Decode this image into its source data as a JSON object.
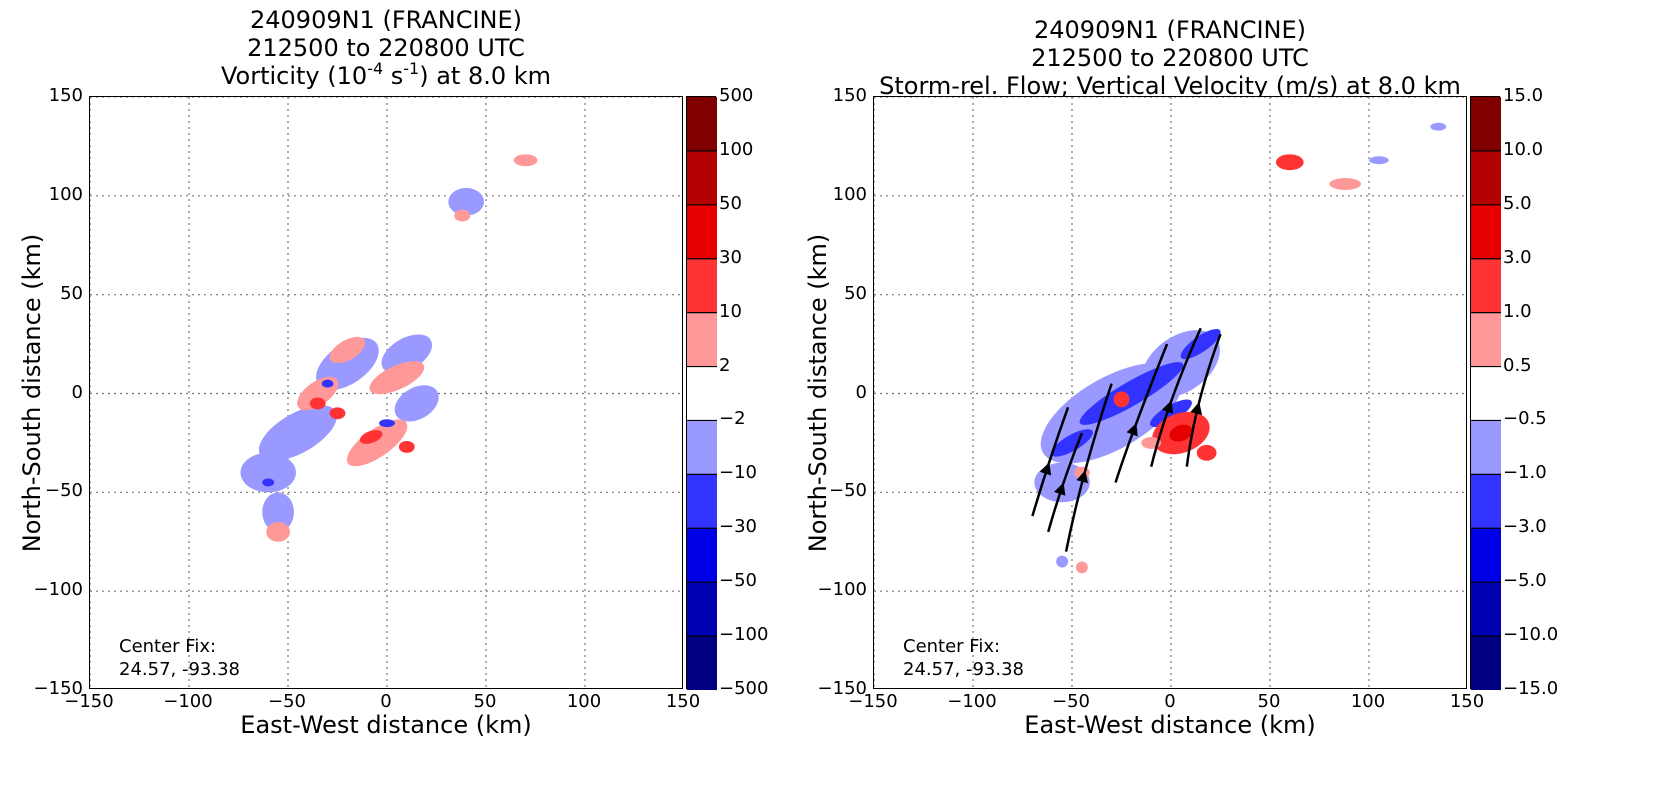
{
  "chart_data": [
    {
      "type": "heatmap",
      "title_lines": [
        "240909N1 (FRANCINE)",
        "212500 to 220800 UTC"
      ],
      "title_line3": {
        "pre": "Vorticity (10",
        "sup1": "-4",
        "mid": " s",
        "sup2": "-1",
        "post": ") at 8.0 km"
      },
      "xlabel": "East-West distance (km)",
      "ylabel": "North-South distance (km)",
      "xlim": [
        -150,
        150
      ],
      "ylim": [
        -150,
        150
      ],
      "xticks": [
        "−150",
        "−100",
        "−50",
        "0",
        "50",
        "100",
        "150"
      ],
      "yticks": [
        "−150",
        "−100",
        "−50",
        "0",
        "50",
        "100",
        "150"
      ],
      "grid": true,
      "center_fix": {
        "label": "Center Fix:",
        "value": "24.57, -93.38"
      },
      "colorbar": {
        "levels": [
          "−500",
          "−100",
          "−50",
          "−30",
          "−10",
          "−2",
          "2",
          "10",
          "30",
          "50",
          "100",
          "500"
        ],
        "colors": [
          "#000080",
          "#0000b3",
          "#0000e6",
          "#3333ff",
          "#9999ff",
          "#ffffff",
          "#ff9999",
          "#ff3333",
          "#e60000",
          "#b30000",
          "#800000"
        ]
      },
      "features": [
        {
          "x": -45,
          "y": -20,
          "rx": 22,
          "ry": 10,
          "rot": -30,
          "color": "#9999ff"
        },
        {
          "x": -60,
          "y": -40,
          "rx": 14,
          "ry": 10,
          "rot": 0,
          "color": "#9999ff"
        },
        {
          "x": -55,
          "y": -60,
          "rx": 8,
          "ry": 10,
          "rot": 0,
          "color": "#9999ff"
        },
        {
          "x": -20,
          "y": 15,
          "rx": 18,
          "ry": 10,
          "rot": -35,
          "color": "#9999ff"
        },
        {
          "x": 10,
          "y": 20,
          "rx": 14,
          "ry": 8,
          "rot": -30,
          "color": "#9999ff"
        },
        {
          "x": 15,
          "y": -5,
          "rx": 12,
          "ry": 8,
          "rot": -30,
          "color": "#9999ff"
        },
        {
          "x": 40,
          "y": 97,
          "rx": 9,
          "ry": 7,
          "rot": 0,
          "color": "#9999ff"
        },
        {
          "x": -35,
          "y": 0,
          "rx": 12,
          "ry": 6,
          "rot": -35,
          "color": "#ff9999"
        },
        {
          "x": -5,
          "y": -25,
          "rx": 18,
          "ry": 7,
          "rot": -35,
          "color": "#ff9999"
        },
        {
          "x": 5,
          "y": 8,
          "rx": 15,
          "ry": 6,
          "rot": -25,
          "color": "#ff9999"
        },
        {
          "x": -20,
          "y": 22,
          "rx": 10,
          "ry": 5,
          "rot": -30,
          "color": "#ff9999"
        },
        {
          "x": -55,
          "y": -70,
          "rx": 6,
          "ry": 5,
          "rot": 0,
          "color": "#ff9999"
        },
        {
          "x": 70,
          "y": 118,
          "rx": 6,
          "ry": 3,
          "rot": 0,
          "color": "#ff9999"
        },
        {
          "x": 38,
          "y": 90,
          "rx": 4,
          "ry": 3,
          "rot": 0,
          "color": "#ff9999"
        },
        {
          "x": -35,
          "y": -5,
          "rx": 4,
          "ry": 3,
          "rot": 0,
          "color": "#ff3333"
        },
        {
          "x": -8,
          "y": -22,
          "rx": 6,
          "ry": 3,
          "rot": -20,
          "color": "#ff3333"
        },
        {
          "x": 10,
          "y": -27,
          "rx": 4,
          "ry": 3,
          "rot": 0,
          "color": "#ff3333"
        },
        {
          "x": -25,
          "y": -10,
          "rx": 4,
          "ry": 3,
          "rot": 0,
          "color": "#ff3333"
        },
        {
          "x": -30,
          "y": 5,
          "rx": 3,
          "ry": 2,
          "rot": 0,
          "color": "#3333ff"
        },
        {
          "x": 0,
          "y": -15,
          "rx": 4,
          "ry": 2,
          "rot": 0,
          "color": "#3333ff"
        },
        {
          "x": -60,
          "y": -45,
          "rx": 3,
          "ry": 2,
          "rot": 0,
          "color": "#3333ff"
        }
      ],
      "streamlines": []
    },
    {
      "type": "heatmap",
      "title_lines": [
        "240909N1 (FRANCINE)",
        "212500 to 220800 UTC"
      ],
      "title_line3": {
        "pre": "Storm-rel. Flow; Vertical Velocity (m/s) at 8.0 km",
        "sup1": "",
        "mid": "",
        "sup2": "",
        "post": ""
      },
      "xlabel": "East-West distance (km)",
      "ylabel": "North-South distance (km)",
      "xlim": [
        -150,
        150
      ],
      "ylim": [
        -150,
        150
      ],
      "xticks": [
        "−150",
        "−100",
        "−50",
        "0",
        "50",
        "100",
        "150"
      ],
      "yticks": [
        "−150",
        "−100",
        "−50",
        "0",
        "50",
        "100",
        "150"
      ],
      "grid": true,
      "center_fix": {
        "label": "Center Fix:",
        "value": "24.57, -93.38"
      },
      "colorbar": {
        "levels": [
          "−15.0",
          "−10.0",
          "−5.0",
          "−3.0",
          "−1.0",
          "−0.5",
          "0.5",
          "1.0",
          "3.0",
          "5.0",
          "10.0",
          "15.0"
        ],
        "colors": [
          "#000080",
          "#0000b3",
          "#0000e6",
          "#3333ff",
          "#9999ff",
          "#ffffff",
          "#ff9999",
          "#ff3333",
          "#e60000",
          "#b30000",
          "#800000"
        ]
      },
      "features": [
        {
          "x": -30,
          "y": -10,
          "rx": 40,
          "ry": 18,
          "rot": -30,
          "color": "#9999ff"
        },
        {
          "x": 5,
          "y": 15,
          "rx": 22,
          "ry": 14,
          "rot": -35,
          "color": "#9999ff"
        },
        {
          "x": -55,
          "y": -45,
          "rx": 14,
          "ry": 10,
          "rot": 0,
          "color": "#9999ff"
        },
        {
          "x": -20,
          "y": 0,
          "rx": 30,
          "ry": 6,
          "rot": -30,
          "color": "#3333ff"
        },
        {
          "x": -50,
          "y": -25,
          "rx": 12,
          "ry": 4,
          "rot": -30,
          "color": "#3333ff"
        },
        {
          "x": 15,
          "y": 25,
          "rx": 12,
          "ry": 4,
          "rot": -35,
          "color": "#3333ff"
        },
        {
          "x": 0,
          "y": -10,
          "rx": 12,
          "ry": 4,
          "rot": -30,
          "color": "#3333ff"
        },
        {
          "x": 5,
          "y": -20,
          "rx": 15,
          "ry": 10,
          "rot": -20,
          "color": "#ff3333"
        },
        {
          "x": -25,
          "y": -3,
          "rx": 4,
          "ry": 4,
          "rot": 0,
          "color": "#ff3333"
        },
        {
          "x": 18,
          "y": -30,
          "rx": 5,
          "ry": 4,
          "rot": 0,
          "color": "#ff3333"
        },
        {
          "x": 5,
          "y": -20,
          "rx": 6,
          "ry": 4,
          "rot": -20,
          "color": "#e60000"
        },
        {
          "x": -10,
          "y": -25,
          "rx": 5,
          "ry": 3,
          "rot": 0,
          "color": "#ff9999"
        },
        {
          "x": -45,
          "y": -40,
          "rx": 4,
          "ry": 3,
          "rot": 0,
          "color": "#ff9999"
        },
        {
          "x": -45,
          "y": -88,
          "rx": 3,
          "ry": 3,
          "rot": 0,
          "color": "#ff9999"
        },
        {
          "x": 60,
          "y": 117,
          "rx": 7,
          "ry": 4,
          "rot": 0,
          "color": "#ff3333"
        },
        {
          "x": 88,
          "y": 106,
          "rx": 8,
          "ry": 3,
          "rot": 0,
          "color": "#ff9999"
        },
        {
          "x": 105,
          "y": 118,
          "rx": 5,
          "ry": 2,
          "rot": 0,
          "color": "#9999ff"
        },
        {
          "x": 135,
          "y": 135,
          "rx": 4,
          "ry": 2,
          "rot": 0,
          "color": "#9999ff"
        },
        {
          "x": -55,
          "y": -85,
          "rx": 3,
          "ry": 3,
          "rot": 0,
          "color": "#9999ff"
        }
      ],
      "streamlines": [
        [
          [
            -70,
            -62
          ],
          [
            -62,
            -35
          ],
          [
            -52,
            -7
          ]
        ],
        [
          [
            -62,
            -70
          ],
          [
            -55,
            -45
          ],
          [
            -45,
            -20
          ]
        ],
        [
          [
            -53,
            -80
          ],
          [
            -45,
            -40
          ],
          [
            -30,
            5
          ]
        ],
        [
          [
            -28,
            -45
          ],
          [
            -20,
            -20
          ],
          [
            -2,
            25
          ]
        ],
        [
          [
            -10,
            -37
          ],
          [
            -2,
            -5
          ],
          [
            15,
            33
          ]
        ],
        [
          [
            8,
            -37
          ],
          [
            12,
            -5
          ],
          [
            25,
            30
          ]
        ]
      ]
    }
  ]
}
